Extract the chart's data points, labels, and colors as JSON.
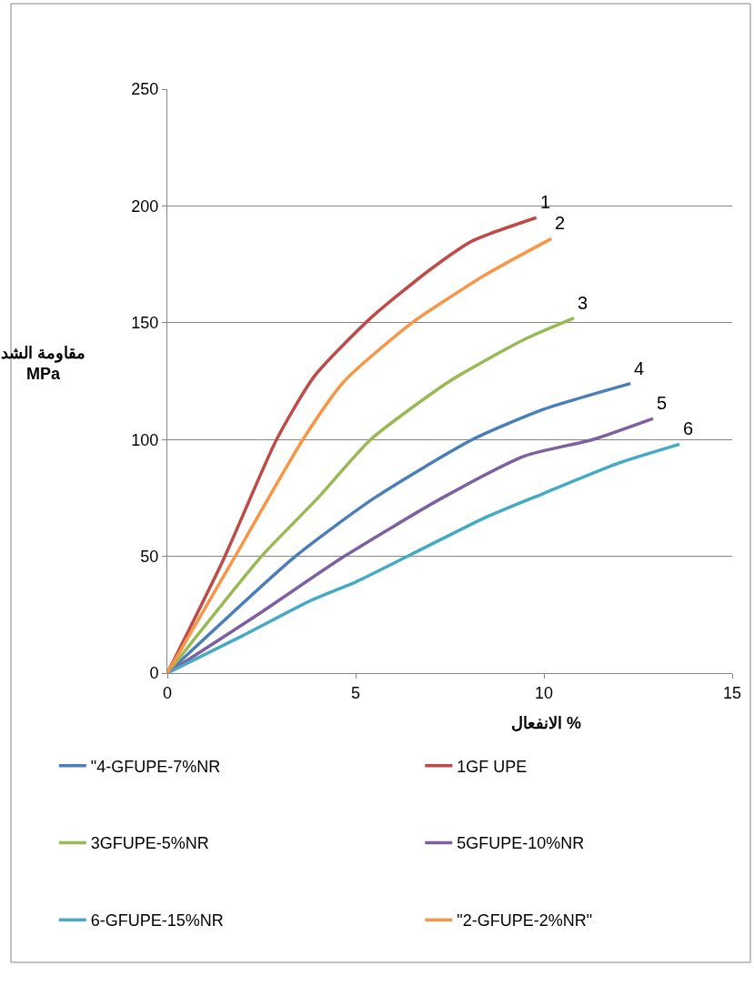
{
  "chart_data": {
    "type": "line",
    "xlabel": "الانفعال %",
    "ylabel": "مقاومة الشد\nMPa",
    "xlim": [
      0,
      15
    ],
    "xticks": [
      0,
      5,
      10,
      15
    ],
    "ylim": [
      0,
      250
    ],
    "yticks": [
      0,
      50,
      100,
      150,
      200,
      250
    ],
    "grid": "y",
    "legend": "bottom",
    "marker": "none",
    "line_style": "solid",
    "series": [
      {
        "name": "\"4-GFUPE-7%NR",
        "color": "#4a7ebb",
        "x": [
          0,
          3.4,
          5.5,
          8.1,
          10,
          12.3
        ],
        "values": [
          0,
          50,
          75,
          100,
          113,
          124
        ]
      },
      {
        "name": "1GF UPE",
        "color": "#be4b48",
        "x": [
          0,
          1.5,
          2.9,
          3.9,
          5.4,
          7,
          8.1,
          9.8
        ],
        "values": [
          0,
          49,
          100,
          127,
          152,
          173,
          185,
          195
        ]
      },
      {
        "name": "3GFUPE-5%NR",
        "color": "#98b954",
        "x": [
          0,
          2.5,
          4,
          5.4,
          7.5,
          9.5,
          10.8
        ],
        "values": [
          0,
          50,
          75,
          100,
          125,
          143,
          152
        ]
      },
      {
        "name": "5GFUPE-10%NR",
        "color": "#7d60a0",
        "x": [
          0,
          2.4,
          4.7,
          7.3,
          9.5,
          11.3,
          12.9
        ],
        "values": [
          0,
          25,
          50,
          75,
          93,
          100,
          109
        ]
      },
      {
        "name": "6-GFUPE-15%NR",
        "color": "#46aac5",
        "x": [
          0,
          2,
          3.8,
          5,
          6.5,
          8.5,
          10,
          12,
          13.6
        ],
        "values": [
          0,
          16,
          31,
          39,
          51,
          67,
          77,
          90,
          98
        ]
      },
      {
        "name": "\"2-GFUPE-2%NR\"",
        "color": "#f79646",
        "x": [
          0,
          1.8,
          3.6,
          4.7,
          6.5,
          8.5,
          10.2
        ],
        "values": [
          0,
          50,
          100,
          125,
          150,
          171,
          186
        ]
      }
    ],
    "annotations": [
      {
        "text": "1",
        "x": 9.8,
        "y": 195
      },
      {
        "text": "2",
        "x": 10.2,
        "y": 186
      },
      {
        "text": "3",
        "x": 10.8,
        "y": 152
      },
      {
        "text": "4",
        "x": 12.3,
        "y": 124
      },
      {
        "text": "5",
        "x": 12.9,
        "y": 109
      },
      {
        "text": "6",
        "x": 13.6,
        "y": 98
      }
    ]
  }
}
